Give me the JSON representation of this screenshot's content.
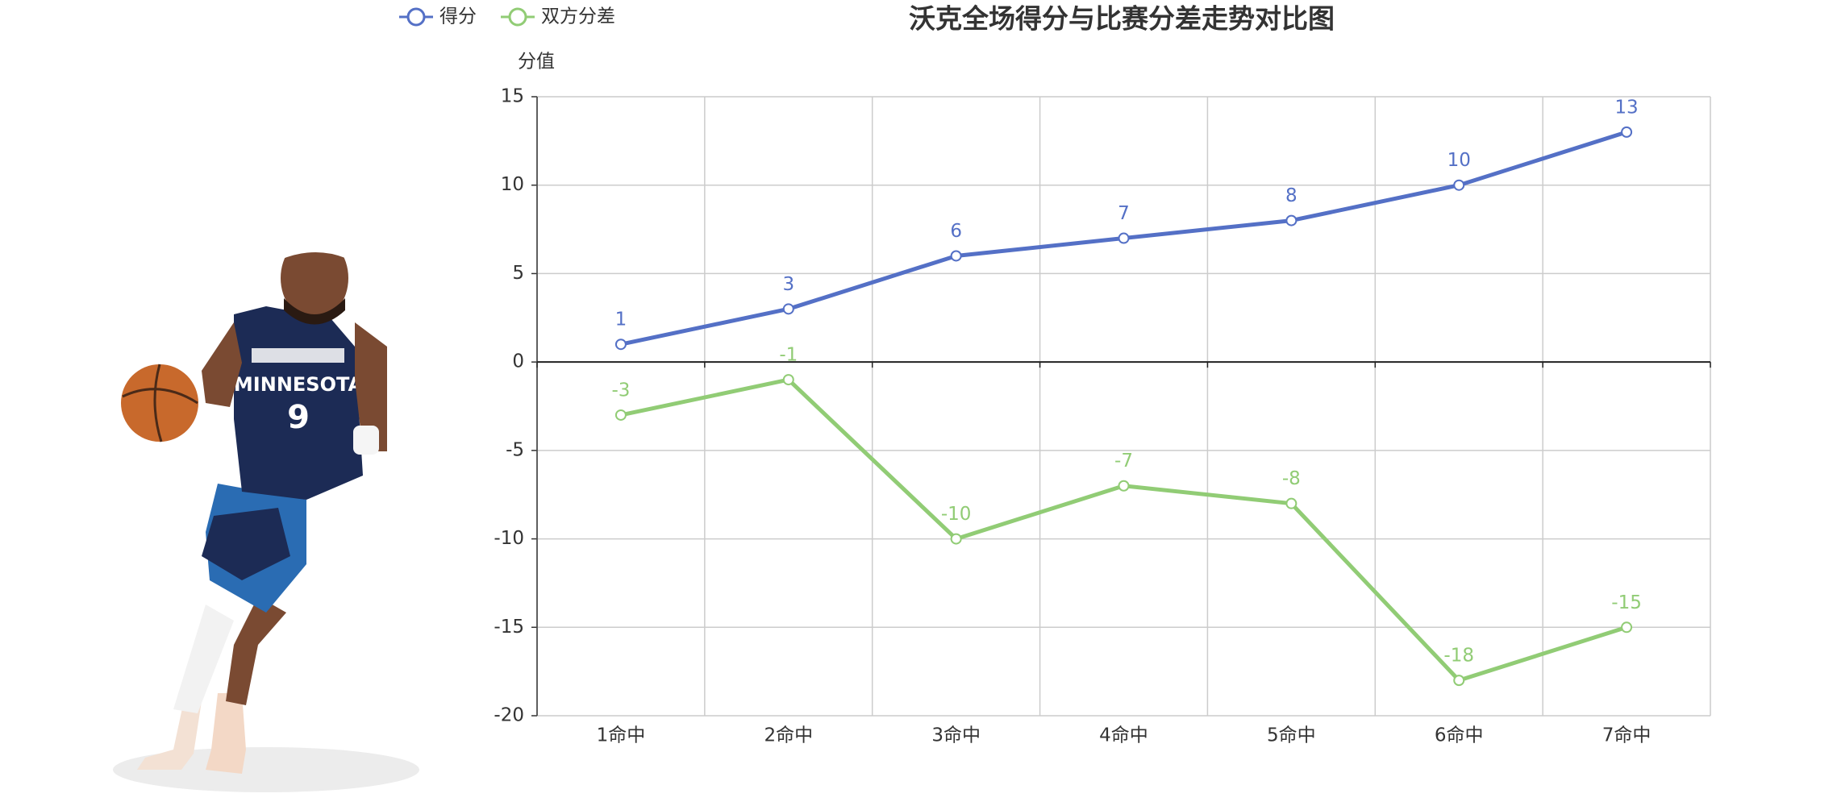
{
  "chart_data": {
    "type": "line",
    "title": "沃克全场得分与比赛分差走势对比图",
    "y_label": "分值",
    "categories": [
      "1命中",
      "2命中",
      "3命中",
      "4命中",
      "5命中",
      "6命中",
      "7命中"
    ],
    "series": [
      {
        "name": "得分",
        "color": "#5470c6",
        "values": [
          1,
          3,
          6,
          7,
          8,
          10,
          13
        ]
      },
      {
        "name": "双方分差",
        "color": "#91cc75",
        "values": [
          -3,
          -1,
          -10,
          -7,
          -8,
          -18,
          -15
        ]
      }
    ],
    "ylim": [
      -20,
      15
    ],
    "yticks": [
      15,
      10,
      5,
      0,
      -5,
      -10,
      -15,
      -20
    ],
    "grid": true
  }
}
